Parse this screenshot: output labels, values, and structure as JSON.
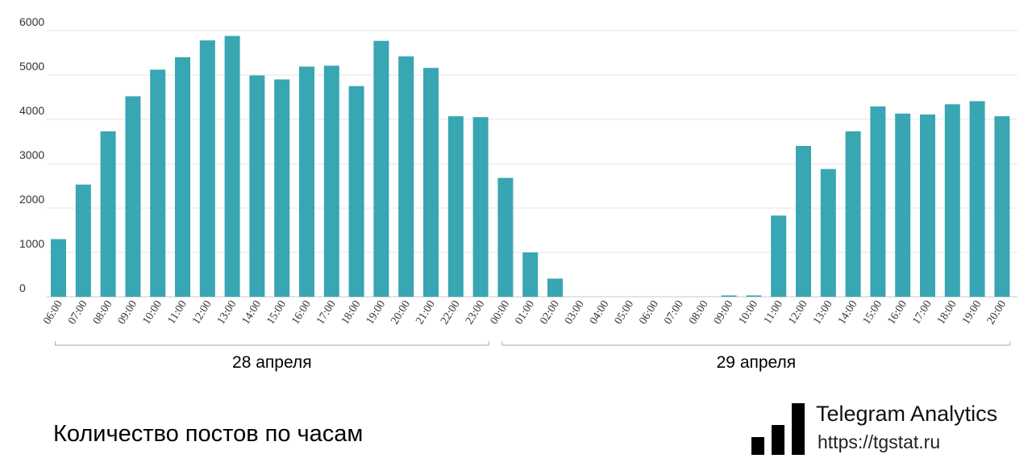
{
  "title": "Количество постов по часам",
  "brand": {
    "name": "Telegram Analytics",
    "url": "https://tgstat.ru",
    "logo_icon": "bar-chart-logo-icon"
  },
  "colors": {
    "bar": "#38a6b3",
    "grid": "#e6e6e6",
    "text": "#333333"
  },
  "chart_data": {
    "type": "bar",
    "title": "Количество постов по часам",
    "xlabel": "",
    "ylabel": "",
    "ylim": [
      0,
      6000
    ],
    "yticks": [
      0,
      1000,
      2000,
      3000,
      4000,
      5000,
      6000
    ],
    "grid": true,
    "legend": "none",
    "categories": [
      "06:00",
      "07:00",
      "08:00",
      "09:00",
      "10:00",
      "11:00",
      "12:00",
      "13:00",
      "14:00",
      "15:00",
      "16:00",
      "17:00",
      "18:00",
      "19:00",
      "20:00",
      "21:00",
      "22:00",
      "23:00",
      "00:00",
      "01:00",
      "02:00",
      "03:00",
      "04:00",
      "05:00",
      "06:00",
      "07:00",
      "08:00",
      "09:00",
      "10:00",
      "11:00",
      "12:00",
      "13:00",
      "14:00",
      "15:00",
      "16:00",
      "17:00",
      "18:00",
      "19:00",
      "20:00"
    ],
    "values": [
      1300,
      2530,
      3730,
      4520,
      5120,
      5400,
      5780,
      5880,
      4990,
      4900,
      5190,
      5210,
      4750,
      5770,
      5420,
      5160,
      4070,
      4050,
      2680,
      1000,
      410,
      0,
      0,
      0,
      0,
      0,
      0,
      30,
      30,
      1830,
      3400,
      2880,
      3730,
      4290,
      4130,
      4110,
      4340,
      4410,
      4070
    ],
    "groups": [
      {
        "label": "28 апреля",
        "from": 0,
        "to": 17
      },
      {
        "label": "29 апреля",
        "from": 18,
        "to": 38
      }
    ]
  }
}
